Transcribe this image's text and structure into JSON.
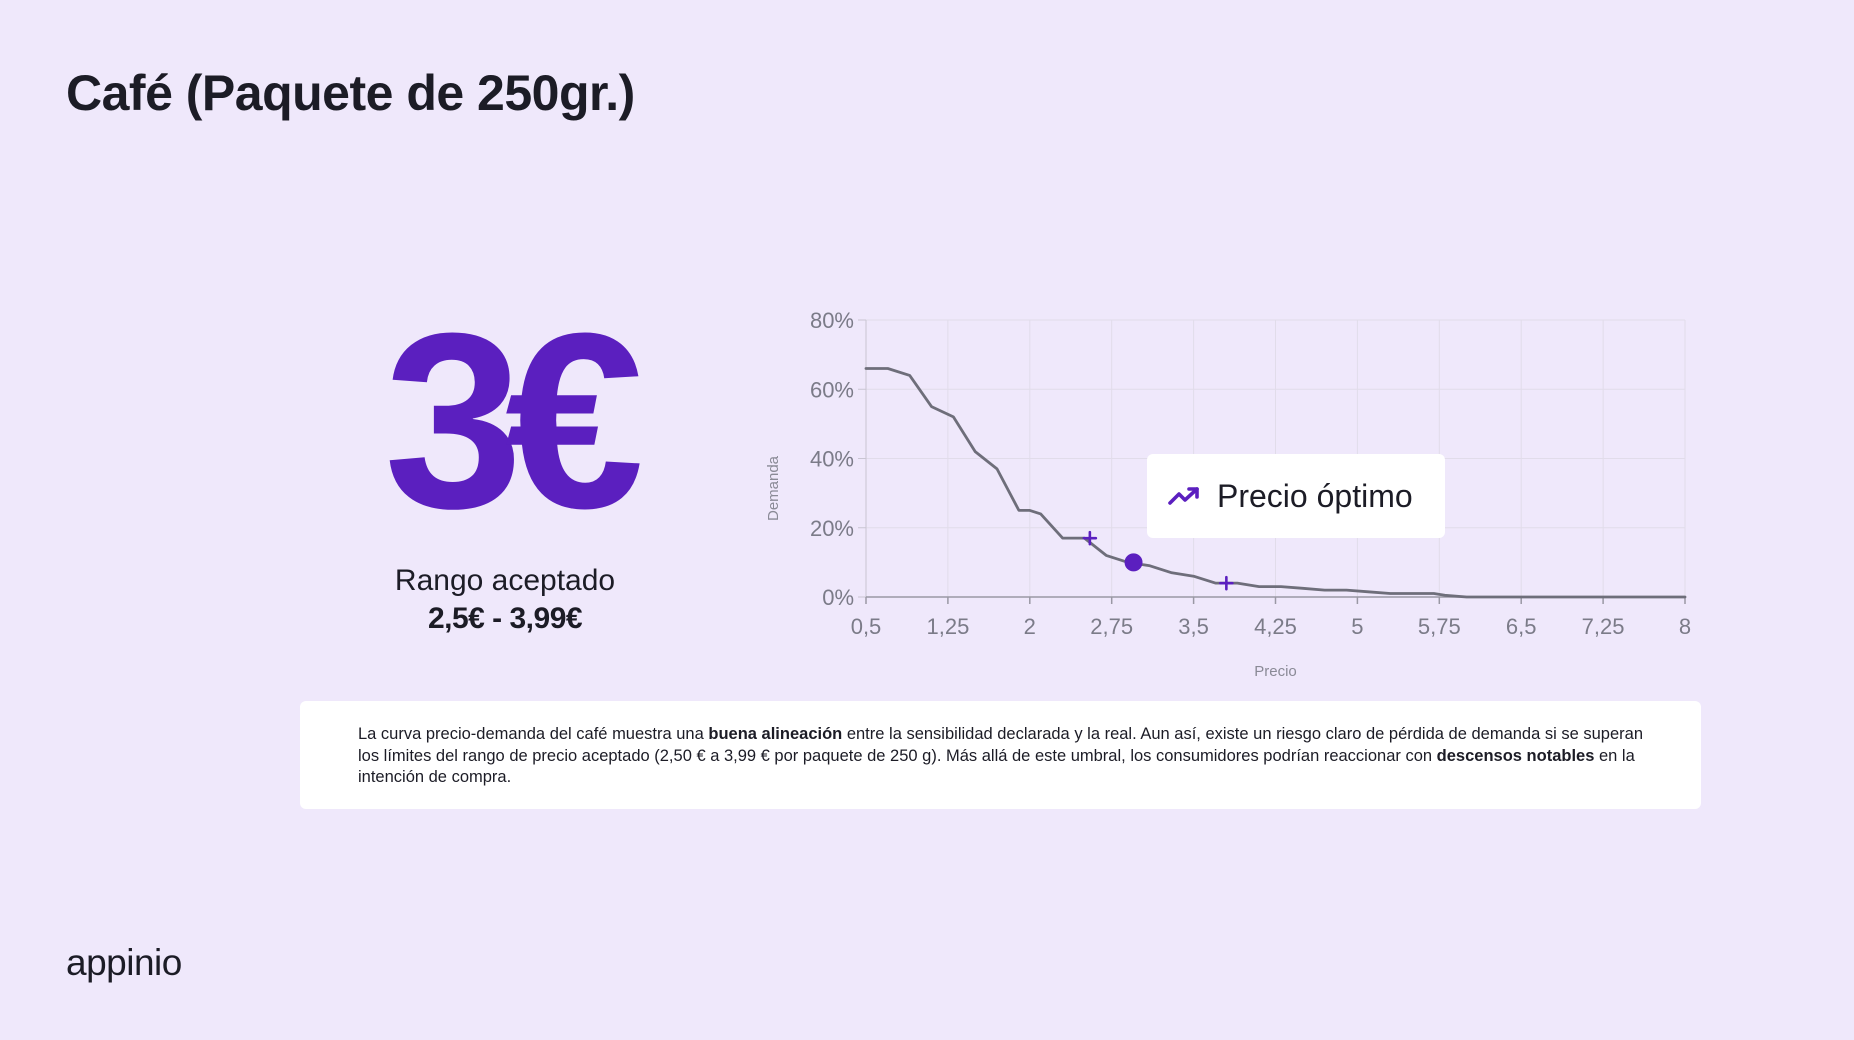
{
  "slide": {
    "title": "Café (Paquete de 250gr.)",
    "optimal_price": "3€",
    "range_label": "Rango aceptado",
    "range_value": "2,5€ - 3,99€",
    "callout": {
      "label": "Precio óptimo",
      "icon": "trending-up-icon"
    },
    "description": {
      "part1": "La curva precio-demanda del café muestra una ",
      "bold1": "buena alineación",
      "part2": " entre la sensibilidad declarada y la real. Aun así, existe un riesgo claro de pérdida de demanda si se superan los límites del rango de precio aceptado (2,50 € a 3,99 € por paquete de 250 g). Más allá de este umbral, los consumidores podrían reaccionar con ",
      "bold2": "descensos notables",
      "part3": " en la intención de compra."
    },
    "logo": "appinio"
  },
  "colors": {
    "background": "#efe8fb",
    "accent": "#5b1fbf",
    "line": "#6e6e7a",
    "grid": "#e1dcea"
  },
  "chart_data": {
    "type": "line",
    "xlabel": "Precio",
    "ylabel": "Demanda",
    "xlim": [
      0.5,
      8
    ],
    "ylim": [
      0,
      80
    ],
    "x_ticks": [
      0.5,
      1.25,
      2,
      2.75,
      3.5,
      4.25,
      5,
      5.75,
      6.5,
      7.25,
      8
    ],
    "x_tick_labels": [
      "0,5",
      "1,25",
      "2",
      "2,75",
      "3,5",
      "4,25",
      "5",
      "5,75",
      "6,5",
      "7,25",
      "8"
    ],
    "y_ticks": [
      0,
      20,
      40,
      60,
      80
    ],
    "y_tick_labels": [
      "0%",
      "20%",
      "40%",
      "60%",
      "80%"
    ],
    "grid": true,
    "series": [
      {
        "x": [
          0.5,
          0.7,
          0.9,
          1.1,
          1.3,
          1.5,
          1.7,
          1.9,
          2.0,
          2.1,
          2.3,
          2.5,
          2.7,
          2.9,
          3.1,
          3.3,
          3.5,
          3.7,
          3.9,
          4.1,
          4.3,
          4.5,
          4.7,
          4.9,
          5.1,
          5.3,
          5.5,
          5.7,
          5.8,
          6.0,
          6.5,
          7.0,
          7.5,
          8.0
        ],
        "y": [
          66,
          66,
          64,
          55,
          52,
          42,
          37,
          25,
          25,
          24,
          17,
          17,
          12,
          10,
          9,
          7,
          6,
          4,
          4,
          3,
          3,
          2.5,
          2,
          2,
          1.5,
          1,
          1,
          1,
          0.5,
          0,
          0,
          0,
          0,
          0
        ]
      }
    ],
    "markers": [
      {
        "x": 2.55,
        "y": 17,
        "shape": "cross"
      },
      {
        "x": 2.95,
        "y": 10,
        "shape": "dot"
      },
      {
        "x": 3.8,
        "y": 4,
        "shape": "cross"
      }
    ]
  }
}
